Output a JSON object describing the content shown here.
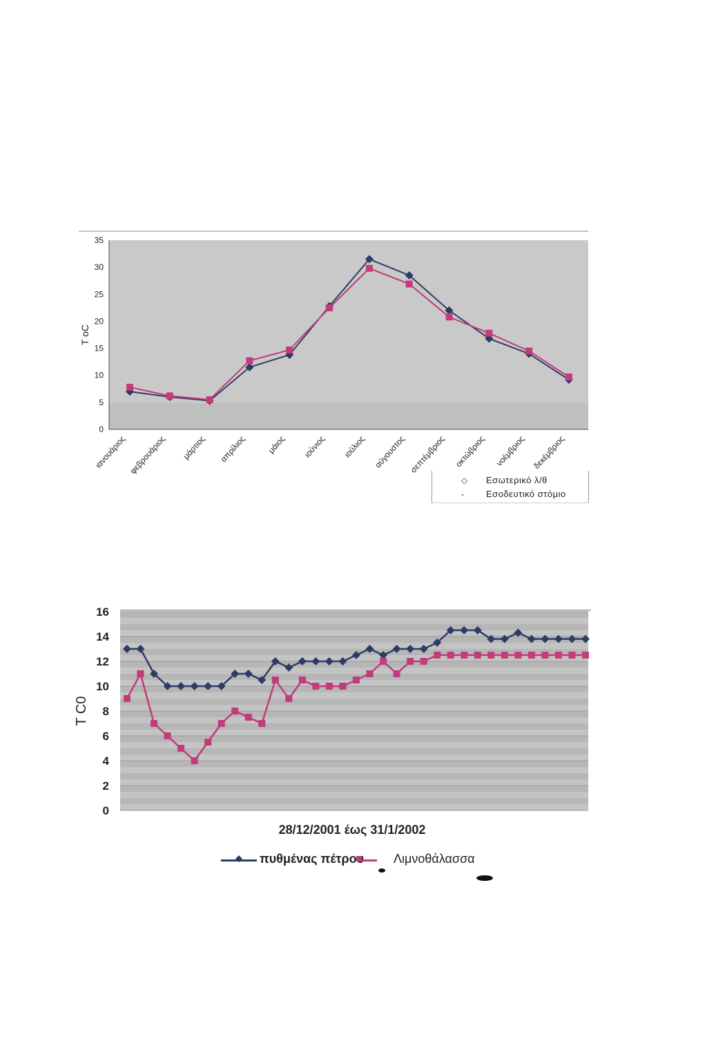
{
  "chart_data": [
    {
      "type": "line",
      "ylabel": "T oC",
      "ylim": [
        0,
        35
      ],
      "yticks": [
        "0",
        "5",
        "10",
        "15",
        "20",
        "25",
        "30",
        "35"
      ],
      "categories": [
        "ιανουάριος",
        "φεβρουάριος",
        "μάρτιος",
        "απρίλιος",
        "μάιος",
        "ιούνιος",
        "ιούλιος",
        "αύγουστος",
        "σεπτέμβριος",
        "οκτώβριος",
        "νοέμβριος",
        "δεκέμβριος"
      ],
      "series": [
        {
          "name": "Εσωτερικό λ/θ",
          "color": "#2f3b66",
          "marker": "diamond",
          "values": [
            7.0,
            6.0,
            5.3,
            11.5,
            13.8,
            22.8,
            31.5,
            28.5,
            22.0,
            16.8,
            14.0,
            9.2
          ]
        },
        {
          "name": "Εσοδευτικό στόμιο",
          "color": "#c23b7a",
          "marker": "square",
          "values": [
            7.8,
            6.2,
            5.5,
            12.7,
            14.7,
            22.5,
            29.8,
            26.9,
            20.8,
            17.8,
            14.5,
            9.7
          ]
        }
      ],
      "legend": "bottom-right",
      "grid": false
    },
    {
      "type": "line",
      "ylabel": "T C0",
      "xlabel": "28/12/2001 έως 31/1/2002",
      "ylim": [
        0,
        16
      ],
      "yticks": [
        "0",
        "2",
        "4",
        "6",
        "8",
        "10",
        "12",
        "14",
        "16"
      ],
      "x": [
        1,
        2,
        3,
        4,
        5,
        6,
        7,
        8,
        9,
        10,
        11,
        12,
        13,
        14,
        15,
        16,
        17,
        18,
        19,
        20,
        21,
        22,
        23,
        24,
        25,
        26,
        27,
        28,
        29,
        30,
        31,
        32,
        33,
        34,
        35
      ],
      "series": [
        {
          "name": "πυθμένας πέτρου",
          "color": "#2f3b66",
          "marker": "diamond",
          "values": [
            13,
            13,
            11,
            10,
            10,
            10,
            10,
            10,
            11,
            11,
            10.5,
            12,
            11.5,
            12,
            12,
            12,
            12,
            12.5,
            13,
            12.5,
            13,
            13,
            13,
            13.5,
            14.5,
            14.5,
            14.5,
            13.8,
            13.8,
            14.3,
            13.8,
            13.8,
            13.8,
            13.8,
            13.8
          ]
        },
        {
          "name": "Λιμνοθάλασσα",
          "color": "#c23b7a",
          "marker": "square",
          "values": [
            9,
            11,
            7,
            6,
            5,
            4,
            5.5,
            7,
            8,
            7.5,
            7,
            10.5,
            9,
            10.5,
            10,
            10,
            10,
            10.5,
            11,
            12,
            11,
            12,
            12,
            12.5,
            12.5,
            12.5,
            12.5,
            12.5,
            12.5,
            12.5,
            12.5,
            12.5,
            12.5,
            12.5,
            12.5
          ]
        }
      ],
      "legend": "bottom",
      "grid": true
    }
  ],
  "legend1": {
    "items": [
      {
        "label": "Εσωτερικό λ/θ",
        "swatch": "◇"
      },
      {
        "label": "Εσοδευτικό στόμιο",
        "swatch": "-"
      }
    ]
  },
  "legend2": {
    "items": [
      {
        "label": "πυθμένας πέτρου"
      },
      {
        "label": "Λιμνοθάλασσα"
      }
    ]
  }
}
